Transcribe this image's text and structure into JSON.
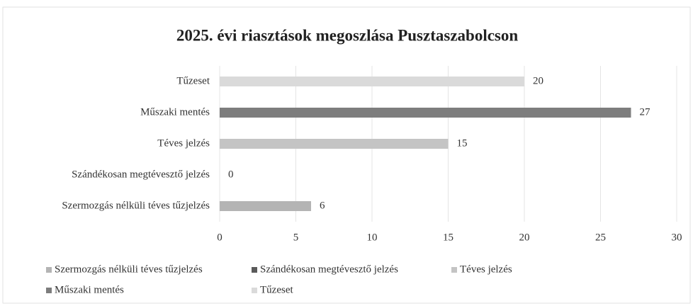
{
  "chart_data": {
    "type": "hbar",
    "title": "2025. évi riasztások megoszlása Pusztaszabolcson",
    "categories": [
      "Szermozgás nélküli téves tűzjelzés",
      "Szándékosan megtévesztő jelzés",
      "Téves jelzés",
      "Műszaki mentés",
      "Tűzeset"
    ],
    "values": [
      6,
      0,
      15,
      27,
      20
    ],
    "colors": [
      "#b4b4b4",
      "#5a5a5a",
      "#c4c4c4",
      "#7d7d7d",
      "#dadada"
    ],
    "xlim": [
      0,
      30
    ],
    "xticks": [
      0,
      5,
      10,
      15,
      20,
      25,
      30
    ],
    "grid": true,
    "legend": "bottom"
  }
}
